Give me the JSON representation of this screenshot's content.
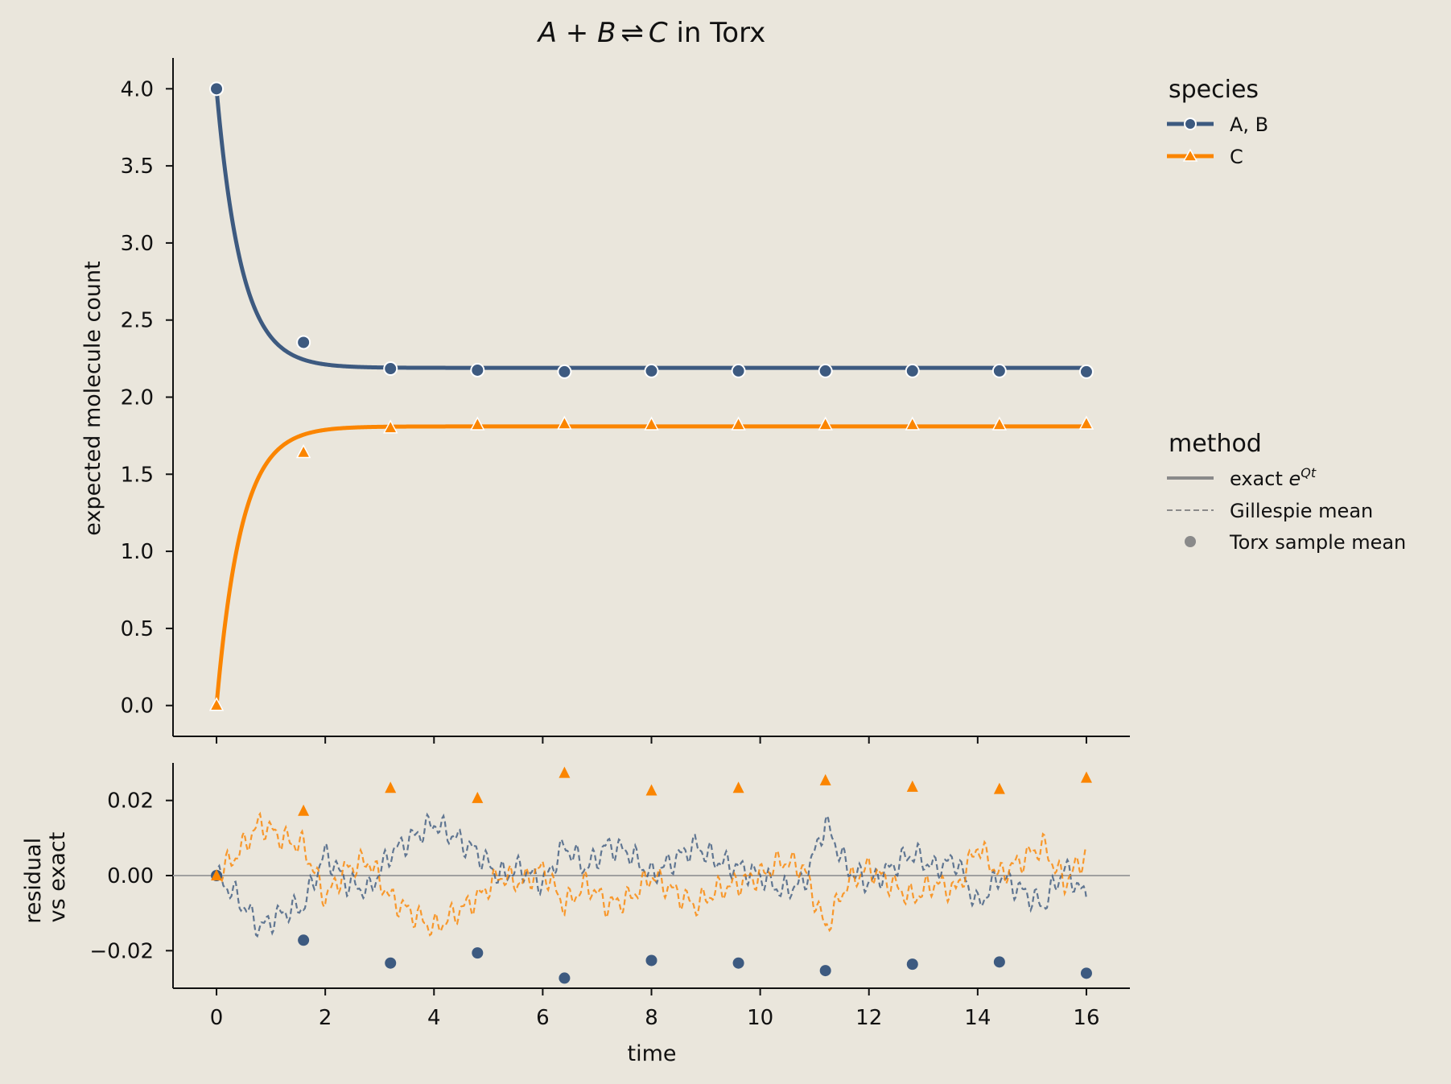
{
  "figure": {
    "title_lhs": "A + B",
    "title_arrow": "⇌",
    "title_rhs": "C",
    "title_suffix": " in Torx",
    "background": "#eae6dc"
  },
  "colors": {
    "ab": "#3d5a80",
    "c": "#fb8500",
    "neutral": "#8a8a8a",
    "zero_line": "#a0a0a0"
  },
  "legend": {
    "species_title": "species",
    "species": [
      {
        "label": "A, B",
        "color": "#3d5a80",
        "marker": "circle"
      },
      {
        "label": "C",
        "color": "#fb8500",
        "marker": "triangle"
      }
    ],
    "method_title": "method",
    "methods": [
      {
        "label": "exact ",
        "sup_base": "e",
        "sup": "Qt",
        "style": "solid"
      },
      {
        "label": "Gillespie mean",
        "style": "dashed"
      },
      {
        "label": "Torx sample mean",
        "style": "marker"
      }
    ]
  },
  "chart_data": [
    {
      "type": "line",
      "title": "A + B ⇌ C in Torx",
      "ylabel": "expected molecule count",
      "xlabel": "",
      "xlim": [
        -0.8,
        16.8
      ],
      "ylim": [
        -0.2,
        4.2
      ],
      "yticks": [
        "0.0",
        "0.5",
        "1.0",
        "1.5",
        "2.0",
        "2.5",
        "3.0",
        "3.5",
        "4.0"
      ],
      "model": {
        "ab_start": 4.0,
        "ab_equilibrium": 2.19,
        "c_equilibrium": 1.81,
        "rate": 2.2
      },
      "series": [
        {
          "name": "A, B",
          "method": "exact e^Qt",
          "marker_x": [
            0,
            1.6,
            3.2,
            4.8,
            6.4,
            8.0,
            9.6,
            11.2,
            12.8,
            14.4,
            16.0
          ],
          "marker_y": [
            4.0,
            2.355,
            2.185,
            2.175,
            2.165,
            2.17,
            2.17,
            2.17,
            2.17,
            2.17,
            2.165
          ]
        },
        {
          "name": "C",
          "method": "exact e^Qt",
          "marker_x": [
            0,
            1.6,
            3.2,
            4.8,
            6.4,
            8.0,
            9.6,
            11.2,
            12.8,
            14.4,
            16.0
          ],
          "marker_y": [
            0.0,
            1.64,
            1.8,
            1.82,
            1.825,
            1.82,
            1.82,
            1.82,
            1.82,
            1.82,
            1.825
          ]
        }
      ]
    },
    {
      "type": "scatter",
      "ylabel_line1": "residual",
      "ylabel_line2": "vs exact",
      "xlabel": "time",
      "xlim": [
        -0.8,
        16.8
      ],
      "ylim": [
        -0.03,
        0.03
      ],
      "xticks": [
        "0",
        "2",
        "4",
        "6",
        "8",
        "10",
        "12",
        "14",
        "16"
      ],
      "yticks": [
        "−0.02",
        "0.00",
        "0.02"
      ],
      "series": [
        {
          "name": "A, B",
          "method": "Torx sample mean",
          "x": [
            0,
            1.6,
            3.2,
            4.8,
            6.4,
            8.0,
            9.6,
            11.2,
            12.8,
            14.4,
            16.0
          ],
          "y": [
            0.0,
            -0.0172,
            -0.0233,
            -0.0206,
            -0.0273,
            -0.0226,
            -0.0233,
            -0.0253,
            -0.0236,
            -0.023,
            -0.026
          ]
        },
        {
          "name": "C",
          "method": "Torx sample mean",
          "x": [
            0,
            1.6,
            3.2,
            4.8,
            6.4,
            8.0,
            9.6,
            11.2,
            12.8,
            14.4,
            16.0
          ],
          "y": [
            0.0,
            0.0172,
            0.0233,
            0.0206,
            0.0273,
            0.0226,
            0.0233,
            0.0253,
            0.0236,
            0.023,
            0.026
          ]
        },
        {
          "name": "A, B",
          "method": "Gillespie mean",
          "x": [
            0,
            0.4,
            0.8,
            1.2,
            1.6,
            2.0,
            2.4,
            2.8,
            3.2,
            3.6,
            4.0,
            4.4,
            4.8,
            5.2,
            5.6,
            6.0,
            6.4,
            6.8,
            7.2,
            7.6,
            8.0,
            8.4,
            8.8,
            9.2,
            9.6,
            10.0,
            10.4,
            10.8,
            11.2,
            11.6,
            12.0,
            12.4,
            12.8,
            13.2,
            13.6,
            14.0,
            14.4,
            14.8,
            15.2,
            15.6,
            16.0
          ],
          "y": [
            0.0,
            -0.006,
            -0.014,
            -0.01,
            -0.008,
            0.006,
            -0.002,
            -0.004,
            0.006,
            0.01,
            0.014,
            0.01,
            0.006,
            0.0,
            0.002,
            -0.002,
            0.008,
            0.002,
            0.008,
            0.006,
            0.0,
            0.004,
            0.008,
            0.004,
            0.002,
            0.0,
            -0.004,
            -0.002,
            0.014,
            0.002,
            -0.002,
            0.002,
            0.006,
            0.002,
            0.004,
            -0.008,
            0.0,
            -0.004,
            -0.008,
            0.002,
            -0.006
          ]
        },
        {
          "name": "C",
          "method": "Gillespie mean",
          "x": [
            0,
            0.4,
            0.8,
            1.2,
            1.6,
            2.0,
            2.4,
            2.8,
            3.2,
            3.6,
            4.0,
            4.4,
            4.8,
            5.2,
            5.6,
            6.0,
            6.4,
            6.8,
            7.2,
            7.6,
            8.0,
            8.4,
            8.8,
            9.2,
            9.6,
            10.0,
            10.4,
            10.8,
            11.2,
            11.6,
            12.0,
            12.4,
            12.8,
            13.2,
            13.6,
            14.0,
            14.4,
            14.8,
            15.2,
            15.6,
            16.0
          ],
          "y": [
            0.0,
            0.006,
            0.014,
            0.01,
            0.008,
            -0.006,
            0.002,
            0.004,
            -0.006,
            -0.01,
            -0.014,
            -0.01,
            -0.006,
            0.0,
            -0.002,
            0.002,
            -0.008,
            -0.002,
            -0.008,
            -0.006,
            0.0,
            -0.004,
            -0.008,
            -0.004,
            -0.002,
            0.0,
            0.004,
            0.002,
            -0.014,
            -0.002,
            0.002,
            -0.002,
            -0.006,
            -0.002,
            -0.004,
            0.008,
            0.0,
            0.004,
            0.008,
            -0.002,
            0.006
          ]
        }
      ]
    }
  ]
}
